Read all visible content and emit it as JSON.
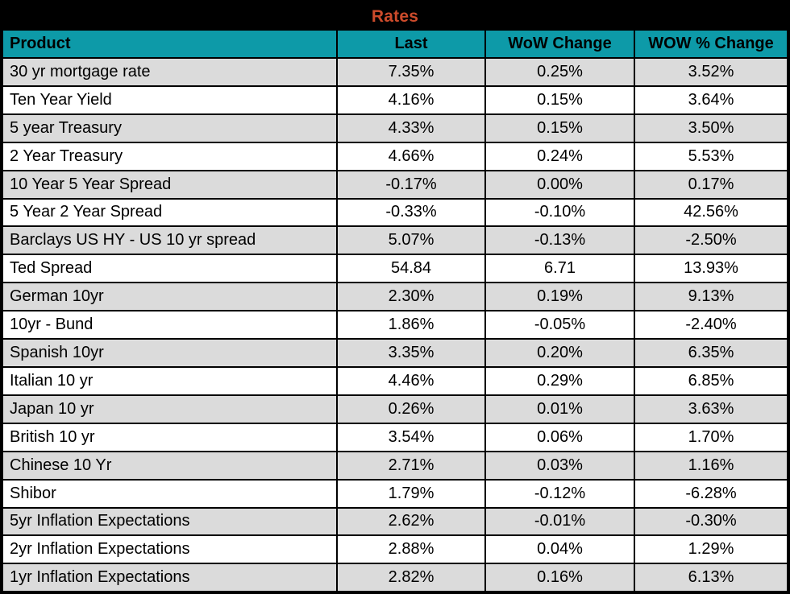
{
  "title": "Rates",
  "colors": {
    "title_bg": "#000000",
    "title_text": "#cc4b2b",
    "header_bg": "#0d9aa8",
    "row_alt_bg": "#dbdbdb",
    "row_bg": "#ffffff",
    "border": "#000000",
    "cell_text": "#000000"
  },
  "chart_data": {
    "type": "table",
    "title": "Rates",
    "columns": [
      "Product",
      "Last",
      "WoW Change",
      "WOW % Change"
    ],
    "rows": [
      [
        "30 yr mortgage rate",
        "7.35%",
        "0.25%",
        "3.52%"
      ],
      [
        "Ten Year Yield",
        "4.16%",
        "0.15%",
        "3.64%"
      ],
      [
        "5 year Treasury",
        "4.33%",
        "0.15%",
        "3.50%"
      ],
      [
        "2 Year Treasury",
        "4.66%",
        "0.24%",
        "5.53%"
      ],
      [
        "10 Year 5 Year Spread",
        "-0.17%",
        "0.00%",
        "0.17%"
      ],
      [
        "5 Year 2 Year Spread",
        "-0.33%",
        "-0.10%",
        "42.56%"
      ],
      [
        "Barclays US HY - US 10 yr spread",
        "5.07%",
        "-0.13%",
        "-2.50%"
      ],
      [
        "Ted Spread",
        "54.84",
        "6.71",
        "13.93%"
      ],
      [
        "German 10yr",
        "2.30%",
        "0.19%",
        "9.13%"
      ],
      [
        "10yr - Bund",
        "1.86%",
        "-0.05%",
        "-2.40%"
      ],
      [
        "Spanish 10yr",
        "3.35%",
        "0.20%",
        "6.35%"
      ],
      [
        "Italian 10 yr",
        "4.46%",
        "0.29%",
        "6.85%"
      ],
      [
        "Japan 10 yr",
        "0.26%",
        "0.01%",
        "3.63%"
      ],
      [
        "British 10 yr",
        "3.54%",
        "0.06%",
        "1.70%"
      ],
      [
        "Chinese 10 Yr",
        "2.71%",
        "0.03%",
        "1.16%"
      ],
      [
        "Shibor",
        "1.79%",
        "-0.12%",
        "-6.28%"
      ],
      [
        "5yr Inflation Expectations",
        "2.62%",
        "-0.01%",
        "-0.30%"
      ],
      [
        "2yr Inflation Expectations",
        "2.88%",
        "0.04%",
        "1.29%"
      ],
      [
        "1yr Inflation Expectations",
        "2.82%",
        "0.16%",
        "6.13%"
      ]
    ]
  }
}
